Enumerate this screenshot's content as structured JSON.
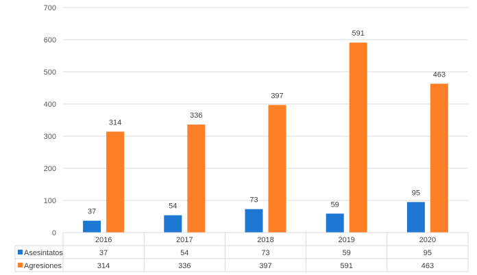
{
  "chart_data": {
    "type": "bar",
    "title": "",
    "xlabel": "",
    "ylabel": "",
    "categories": [
      "2016",
      "2017",
      "2018",
      "2019",
      "2020"
    ],
    "series": [
      {
        "name": "Asesintatos",
        "values": [
          37,
          54,
          73,
          59,
          95
        ],
        "color": "#1f77d4"
      },
      {
        "name": "Agresiones",
        "values": [
          314,
          336,
          397,
          591,
          463
        ],
        "color": "#ff7f27"
      }
    ],
    "ylim": [
      0,
      700
    ],
    "yticks": [
      "0",
      "100",
      "200",
      "300",
      "400",
      "500",
      "600",
      "700"
    ],
    "grid": true,
    "legend": "data-table-below"
  }
}
